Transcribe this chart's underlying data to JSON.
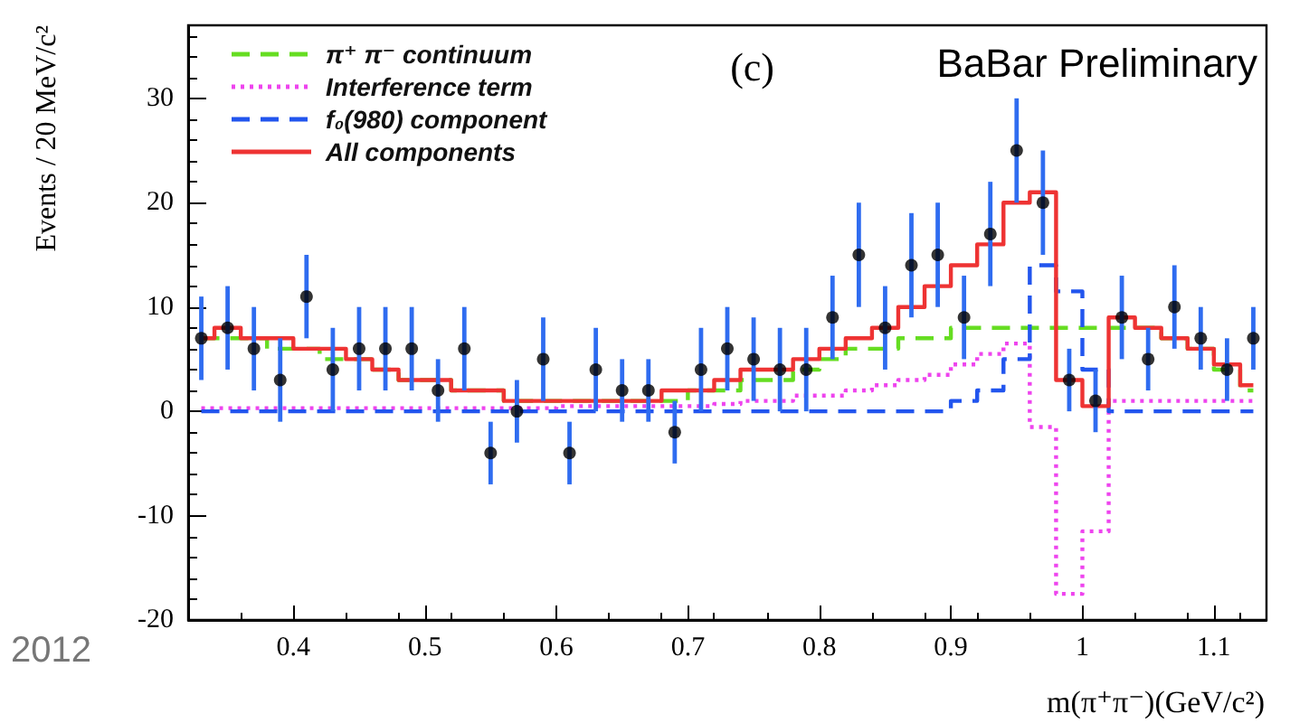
{
  "chart_data": {
    "type": "step",
    "xlabel": "m(π⁺π⁻)(GeV/c²)",
    "ylabel": "Events / 20 MeV/c²",
    "annotations": [
      "(c)",
      "BaBar Preliminary",
      "2012"
    ],
    "xlim": [
      0.32,
      1.14
    ],
    "xticks": [
      0.4,
      0.5,
      0.6,
      0.7,
      0.8,
      0.9,
      1,
      1.1
    ],
    "ylim": [
      -20,
      37
    ],
    "yticks": [
      -20,
      -10,
      0,
      10,
      20,
      30
    ],
    "grid": false,
    "legend": "top left",
    "x": [
      0.33,
      0.35,
      0.37,
      0.39,
      0.41,
      0.43,
      0.45,
      0.47,
      0.49,
      0.51,
      0.53,
      0.55,
      0.57,
      0.59,
      0.61,
      0.63,
      0.65,
      0.67,
      0.69,
      0.71,
      0.73,
      0.75,
      0.77,
      0.79,
      0.81,
      0.83,
      0.85,
      0.87,
      0.89,
      0.91,
      0.93,
      0.95,
      0.97,
      0.99,
      1.01,
      1.03,
      1.05,
      1.07,
      1.09,
      1.11,
      1.13
    ],
    "series": [
      {
        "name": "π⁺ π⁻ continuum",
        "color": "#66dd22",
        "line_style": "dashed",
        "values": [
          7,
          7,
          7,
          6,
          6,
          5,
          5,
          4,
          3,
          3,
          2,
          2,
          1,
          1,
          1,
          1,
          1,
          1,
          1,
          2,
          2,
          3,
          3,
          4,
          5,
          6,
          6,
          7,
          7,
          8,
          8,
          8,
          8,
          8,
          8,
          8,
          8,
          7,
          6,
          4,
          2
        ]
      },
      {
        "name": "Interference term",
        "color": "#ee44ee",
        "line_style": "dotted",
        "values": [
          0.3,
          0.3,
          0.3,
          0.3,
          0.3,
          0.3,
          0.3,
          0.3,
          0.3,
          0.3,
          0.3,
          0.3,
          0.3,
          0.3,
          0.5,
          0.5,
          0.5,
          0.5,
          0.5,
          0.5,
          0.7,
          1,
          1,
          1.5,
          1.5,
          2,
          2.5,
          3,
          3.5,
          4.5,
          5.5,
          6.5,
          -1.5,
          -17.5,
          -11.5,
          1,
          1,
          1,
          1,
          1,
          1
        ]
      },
      {
        "name": "f₀(980) component",
        "color": "#2255ee",
        "line_style": "dashed",
        "values": [
          0,
          0,
          0,
          0,
          0,
          0,
          0,
          0,
          0,
          0,
          0,
          0,
          0,
          0,
          0,
          0,
          0,
          0,
          0,
          0,
          0,
          0,
          0,
          0,
          0,
          0,
          0,
          0,
          0,
          1,
          2,
          5,
          14,
          11.5,
          4,
          0,
          0,
          0,
          0,
          0,
          0
        ]
      },
      {
        "name": "All components",
        "color": "#ee3333",
        "line_style": "solid",
        "values": [
          7,
          8,
          7,
          7,
          6,
          6,
          5,
          4,
          3,
          3,
          2,
          2,
          1,
          1,
          1,
          1,
          1,
          1,
          2,
          2,
          3,
          4,
          4,
          5,
          6,
          7,
          8,
          10,
          12,
          14,
          16,
          20,
          21,
          3,
          0.5,
          9,
          8,
          7,
          6,
          4.5,
          2.5
        ]
      },
      {
        "type": "scatter",
        "color": "#000000",
        "marker": "circle",
        "values": [
          7,
          8,
          6,
          3,
          11,
          4,
          6,
          6,
          6,
          2,
          6,
          -4,
          0,
          5,
          -4,
          4,
          2,
          2,
          -2,
          4,
          6,
          5,
          4,
          4,
          9,
          15,
          8,
          14,
          15,
          9,
          17,
          25,
          20,
          3,
          1,
          9,
          5,
          10,
          7,
          4,
          7
        ],
        "errors": [
          4,
          4,
          4,
          4,
          4,
          4,
          4,
          4,
          4,
          3,
          4,
          3,
          3,
          4,
          3,
          4,
          3,
          3,
          3,
          4,
          4,
          4,
          4,
          4,
          4,
          5,
          4,
          5,
          5,
          4,
          5,
          5,
          5,
          3,
          3,
          4,
          3,
          4,
          3,
          3,
          3
        ]
      }
    ]
  }
}
